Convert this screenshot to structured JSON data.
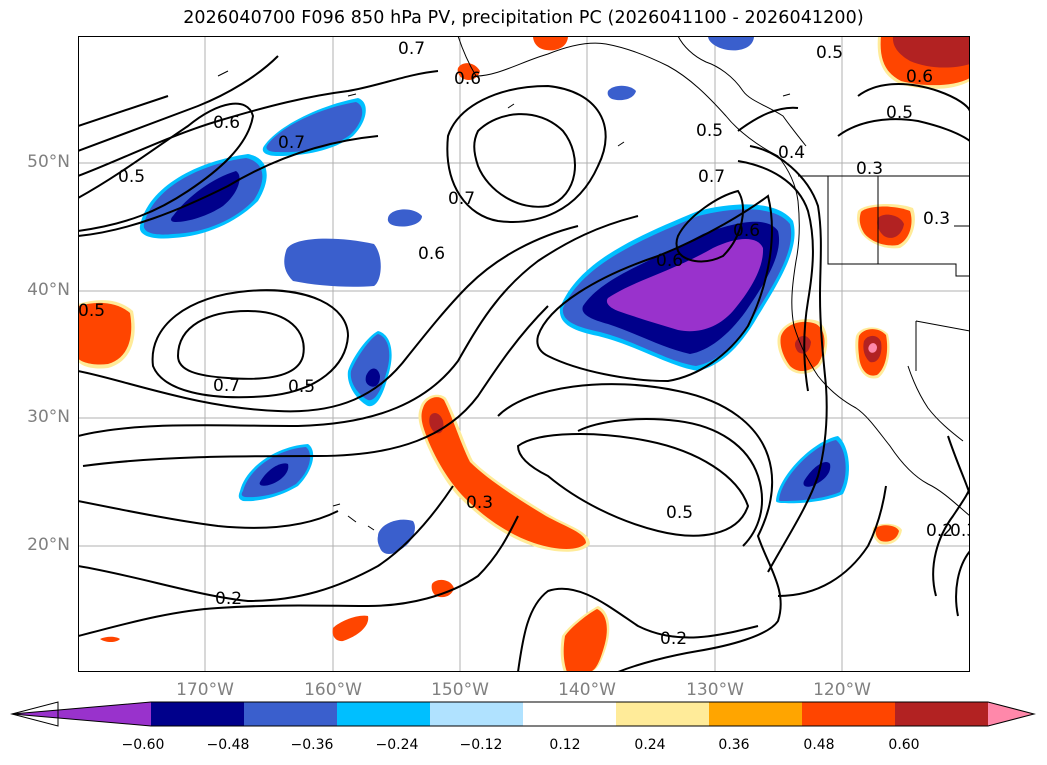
{
  "title": "2026040700 F096 850 hPa PV, precipitation PC (2026041100 - 2026041200)",
  "lat_labels": [
    "50°N",
    "40°N",
    "30°N",
    "20°N"
  ],
  "lon_labels": [
    "170°W",
    "160°W",
    "150°W",
    "140°W",
    "130°W",
    "120°W"
  ],
  "contour_labels": [
    "0.5",
    "0.6",
    "0.7",
    "0.5",
    "0.7",
    "0.6",
    "0.7",
    "0.6",
    "0.7",
    "0.6",
    "0.5",
    "0.3",
    "0.5",
    "0.2",
    "0.2",
    "0.5",
    "0.3",
    "0.2",
    "0.3",
    "0.6",
    "0.5",
    "0.3",
    "0.7",
    "0.6",
    "0.5",
    "0.4"
  ],
  "colorbar": {
    "colors": [
      "#9932cc",
      "#00008b",
      "#3a5fcd",
      "#00bfff",
      "#b0e2ff",
      "#ffffff",
      "#ffeb99",
      "#ffa500",
      "#ff4500",
      "#b22222",
      "#ff88aa"
    ],
    "ticks": [
      "−0.60",
      "−0.48",
      "−0.36",
      "−0.24",
      "−0.12",
      "0.12",
      "0.24",
      "0.36",
      "0.48",
      "0.60"
    ]
  }
}
